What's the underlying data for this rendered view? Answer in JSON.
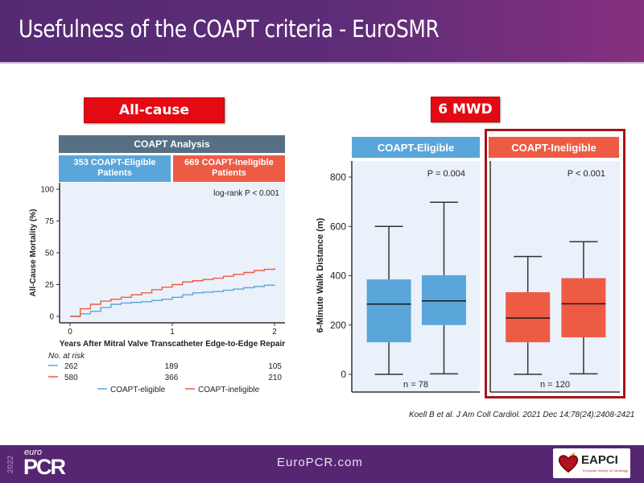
{
  "header": {
    "title": "Usefulness of the COAPT criteria - EuroSMR"
  },
  "labels": {
    "mortality": "All-cause mortality",
    "mwd": "6 MWD"
  },
  "colors": {
    "eligible": "#5aa6da",
    "ineligible": "#ee5b45",
    "header_bar": "#576f84",
    "label_red": "#e50914",
    "frame": "#a4161a",
    "plot_bg": "#eaf1fa",
    "brand_purple": "#572673"
  },
  "km": {
    "analysis_header": "COAPT Analysis",
    "eligible_header": "353 COAPT-Eligible Patients",
    "eligible_header_l1": "353 COAPT-Eligible",
    "eligible_header_l2": "Patients",
    "ineligible_header_l1": "669 COAPT-Ineligible",
    "ineligible_header_l2": "Patients",
    "at_risk_label": "No. at risk",
    "at_risk": {
      "eligible": [
        "262",
        "189",
        "105"
      ],
      "ineligible": [
        "580",
        "366",
        "210"
      ]
    },
    "legend": [
      "COAPT-eligible",
      "COAPT-ineligible"
    ]
  },
  "box": {
    "eligible_header": "COAPT-Eligible",
    "ineligible_header": "COAPT-Ineligible",
    "eligible_p": "P = 0.004",
    "ineligible_p": "P < 0.001",
    "eligible_n": "n = 78",
    "ineligible_n": "n = 120"
  },
  "citation": "Koell B et al. J Am Coll Cardiol. 2021 Dec 14;78(24):2408-2421",
  "footer": {
    "url": "EuroPCR.com",
    "logo_year": "2022",
    "logo_euro": "euro",
    "logo_pcr": "PCR",
    "partner": "EAPCI",
    "partner_sub": "European Society of Cardiology"
  },
  "chart_data": [
    {
      "type": "line",
      "title": "COAPT Analysis",
      "xlabel": "Years After Mitral Valve Transcatheter Edge-to-Edge Repair",
      "ylabel": "All-Cause Mortality (%)",
      "xlim": [
        0,
        2
      ],
      "ylim": [
        0,
        100
      ],
      "xticks": [
        "0",
        "1",
        "2"
      ],
      "yticks": [
        "0",
        "25",
        "50",
        "75",
        "100"
      ],
      "annotation": "log-rank P < 0.001",
      "series": [
        {
          "name": "COAPT-eligible",
          "color": "#5aa6da",
          "x": [
            0,
            0.1,
            0.2,
            0.3,
            0.4,
            0.5,
            0.6,
            0.7,
            0.8,
            0.9,
            1.0,
            1.1,
            1.2,
            1.3,
            1.4,
            1.5,
            1.6,
            1.7,
            1.8,
            1.9,
            2.0
          ],
          "y": [
            0,
            2,
            4,
            7,
            9.5,
            10.5,
            11,
            11.5,
            12.5,
            13.5,
            15,
            17,
            18.5,
            19,
            19.5,
            20.5,
            21.5,
            22.5,
            23.5,
            24.5,
            25
          ]
        },
        {
          "name": "COAPT-ineligible",
          "color": "#ee5b45",
          "x": [
            0,
            0.1,
            0.2,
            0.3,
            0.4,
            0.5,
            0.6,
            0.7,
            0.8,
            0.9,
            1.0,
            1.1,
            1.2,
            1.3,
            1.4,
            1.5,
            1.6,
            1.7,
            1.8,
            1.9,
            2.0
          ],
          "y": [
            0,
            6,
            9.5,
            12,
            13.5,
            15,
            17,
            18.5,
            21,
            23,
            25,
            27,
            28,
            29,
            30,
            31.5,
            33,
            34.5,
            36,
            37,
            38
          ]
        }
      ]
    },
    {
      "type": "box",
      "title": "6-Minute Walk Distance",
      "ylabel": "6-Minute Walk Distance (m)",
      "ylim": [
        0,
        850
      ],
      "yticks": [
        "0",
        "200",
        "400",
        "600",
        "800"
      ],
      "groups": [
        {
          "name": "COAPT-Eligible",
          "color": "#5aa6da",
          "p": "P = 0.004",
          "n": "n = 78",
          "boxes": [
            {
              "min": 0,
              "q1": 130,
              "median": 285,
              "q3": 385,
              "max": 600
            },
            {
              "min": 2,
              "q1": 200,
              "median": 298,
              "q3": 402,
              "max": 698
            }
          ]
        },
        {
          "name": "COAPT-Ineligible",
          "color": "#ee5b45",
          "p": "P < 0.001",
          "n": "n = 120",
          "boxes": [
            {
              "min": 0,
              "q1": 130,
              "median": 228,
              "q3": 333,
              "max": 478
            },
            {
              "min": 2,
              "q1": 150,
              "median": 286,
              "q3": 390,
              "max": 538
            }
          ]
        }
      ]
    }
  ]
}
